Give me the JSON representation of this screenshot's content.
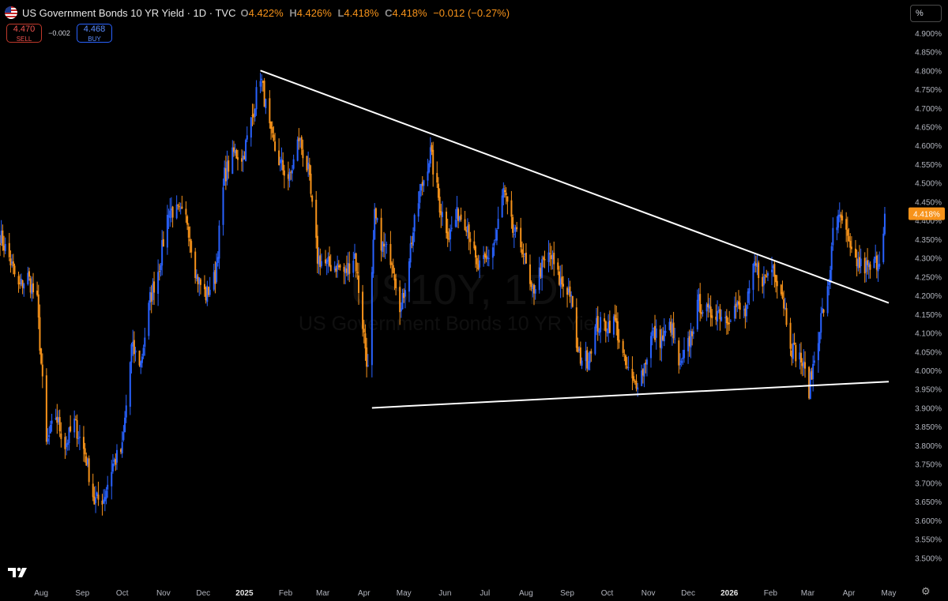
{
  "header": {
    "title": "US Government Bonds 10 YR Yield · 1D · TVC",
    "open_key": "O",
    "open": "4.422%",
    "high_key": "H",
    "high": "4.426%",
    "low_key": "L",
    "low": "4.418%",
    "close_key": "C",
    "close": "4.418%",
    "change": "−0.012 (−0.27%)"
  },
  "trade": {
    "sell_price": "4.470",
    "sell_label": "SELL",
    "spread": "−0.002",
    "buy_price": "4.468",
    "buy_label": "BUY"
  },
  "axis_unit_button": "%",
  "colors": {
    "bg": "#000000",
    "up": "#2962ff",
    "down": "#f7931a",
    "trendline": "#ffffff",
    "price_label": "#f7931a"
  },
  "icons": {
    "logo": "tradingview-logo",
    "settings": "gear-icon"
  },
  "chart_data": {
    "type": "candlestick",
    "title": "US Government Bonds 10 YR Yield",
    "interval": "1D",
    "source": "TVC",
    "ylim": [
      3.45,
      4.925
    ],
    "y_ticks": [
      "4.900%",
      "4.850%",
      "4.800%",
      "4.750%",
      "4.700%",
      "4.650%",
      "4.600%",
      "4.550%",
      "4.500%",
      "4.450%",
      "4.400%",
      "4.350%",
      "4.300%",
      "4.250%",
      "4.200%",
      "4.150%",
      "4.100%",
      "4.050%",
      "4.000%",
      "3.950%",
      "3.900%",
      "3.850%",
      "3.800%",
      "3.750%",
      "3.700%",
      "3.650%",
      "3.600%",
      "3.550%",
      "3.500%"
    ],
    "x_ticks": [
      {
        "label": "Aug",
        "date": "2024-08-01"
      },
      {
        "label": "Sep",
        "date": "2024-09-01"
      },
      {
        "label": "Oct",
        "date": "2024-10-01"
      },
      {
        "label": "Nov",
        "date": "2024-11-01"
      },
      {
        "label": "Dec",
        "date": "2024-12-01"
      },
      {
        "label": "2025",
        "date": "2025-01-01"
      },
      {
        "label": "Feb",
        "date": "2025-02-01"
      },
      {
        "label": "Mar",
        "date": "2025-03-01"
      },
      {
        "label": "Apr",
        "date": "2025-04-01"
      },
      {
        "label": "May",
        "date": "2025-05-01"
      },
      {
        "label": "Jun",
        "date": "2025-06-01"
      },
      {
        "label": "Jul",
        "date": "2025-07-01"
      },
      {
        "label": "Aug",
        "date": "2025-08-01"
      },
      {
        "label": "Sep",
        "date": "2025-09-01"
      },
      {
        "label": "Oct",
        "date": "2025-10-01"
      },
      {
        "label": "Nov",
        "date": "2025-11-01"
      },
      {
        "label": "Dec",
        "date": "2025-12-01"
      },
      {
        "label": "2026",
        "date": "2026-01-01"
      },
      {
        "label": "Feb",
        "date": "2026-02-01"
      },
      {
        "label": "Mar",
        "date": "2026-03-01"
      },
      {
        "label": "Apr",
        "date": "2026-04-01"
      },
      {
        "label": "May",
        "date": "2026-05-01"
      }
    ],
    "x_start": "2024-07-01",
    "x_end": "2026-05-01",
    "last_price": 4.418,
    "last_price_label": "4.418%",
    "close_path": [
      [
        "2024-07-01",
        4.36
      ],
      [
        "2024-07-08",
        4.3
      ],
      [
        "2024-07-15",
        4.22
      ],
      [
        "2024-07-22",
        4.25
      ],
      [
        "2024-07-29",
        4.18
      ],
      [
        "2024-08-05",
        3.8
      ],
      [
        "2024-08-12",
        3.88
      ],
      [
        "2024-08-19",
        3.8
      ],
      [
        "2024-08-26",
        3.86
      ],
      [
        "2024-09-03",
        3.78
      ],
      [
        "2024-09-10",
        3.65
      ],
      [
        "2024-09-17",
        3.66
      ],
      [
        "2024-09-24",
        3.75
      ],
      [
        "2024-10-01",
        3.79
      ],
      [
        "2024-10-08",
        4.06
      ],
      [
        "2024-10-15",
        4.02
      ],
      [
        "2024-10-22",
        4.19
      ],
      [
        "2024-10-29",
        4.28
      ],
      [
        "2024-11-05",
        4.43
      ],
      [
        "2024-11-12",
        4.42
      ],
      [
        "2024-11-19",
        4.4
      ],
      [
        "2024-11-26",
        4.25
      ],
      [
        "2024-12-03",
        4.2
      ],
      [
        "2024-12-10",
        4.25
      ],
      [
        "2024-12-17",
        4.52
      ],
      [
        "2024-12-24",
        4.58
      ],
      [
        "2024-12-31",
        4.57
      ],
      [
        "2025-01-07",
        4.68
      ],
      [
        "2025-01-13",
        4.79
      ],
      [
        "2025-01-21",
        4.62
      ],
      [
        "2025-01-28",
        4.55
      ],
      [
        "2025-02-04",
        4.51
      ],
      [
        "2025-02-11",
        4.62
      ],
      [
        "2025-02-18",
        4.53
      ],
      [
        "2025-02-25",
        4.3
      ],
      [
        "2025-03-04",
        4.28
      ],
      [
        "2025-03-11",
        4.28
      ],
      [
        "2025-03-18",
        4.26
      ],
      [
        "2025-03-25",
        4.31
      ],
      [
        "2025-04-04",
        4.0
      ],
      [
        "2025-04-09",
        4.41
      ],
      [
        "2025-04-15",
        4.33
      ],
      [
        "2025-04-22",
        4.3
      ],
      [
        "2025-04-29",
        4.16
      ],
      [
        "2025-05-06",
        4.33
      ],
      [
        "2025-05-13",
        4.47
      ],
      [
        "2025-05-21",
        4.58
      ],
      [
        "2025-05-28",
        4.44
      ],
      [
        "2025-06-04",
        4.36
      ],
      [
        "2025-06-11",
        4.42
      ],
      [
        "2025-06-18",
        4.39
      ],
      [
        "2025-06-25",
        4.27
      ],
      [
        "2025-07-02",
        4.29
      ],
      [
        "2025-07-09",
        4.35
      ],
      [
        "2025-07-15",
        4.48
      ],
      [
        "2025-07-22",
        4.37
      ],
      [
        "2025-07-29",
        4.33
      ],
      [
        "2025-08-05",
        4.2
      ],
      [
        "2025-08-12",
        4.27
      ],
      [
        "2025-08-19",
        4.31
      ],
      [
        "2025-08-26",
        4.24
      ],
      [
        "2025-09-03",
        4.21
      ],
      [
        "2025-09-09",
        4.04
      ],
      [
        "2025-09-16",
        4.03
      ],
      [
        "2025-09-23",
        4.12
      ],
      [
        "2025-09-30",
        4.12
      ],
      [
        "2025-10-07",
        4.13
      ],
      [
        "2025-10-14",
        4.02
      ],
      [
        "2025-10-21",
        3.96
      ],
      [
        "2025-10-28",
        4.0
      ],
      [
        "2025-11-04",
        4.1
      ],
      [
        "2025-11-11",
        4.08
      ],
      [
        "2025-11-18",
        4.12
      ],
      [
        "2025-11-25",
        4.0
      ],
      [
        "2025-12-02",
        4.08
      ],
      [
        "2025-12-09",
        4.18
      ],
      [
        "2025-12-16",
        4.15
      ],
      [
        "2025-12-23",
        4.16
      ],
      [
        "2025-12-30",
        4.14
      ],
      [
        "2026-01-06",
        4.17
      ],
      [
        "2026-01-13",
        4.15
      ],
      [
        "2026-01-20",
        4.28
      ],
      [
        "2026-01-27",
        4.24
      ],
      [
        "2026-02-03",
        4.28
      ],
      [
        "2026-02-10",
        4.2
      ],
      [
        "2026-02-17",
        4.06
      ],
      [
        "2026-02-24",
        4.03
      ],
      [
        "2026-03-02",
        3.95
      ],
      [
        "2026-03-06",
        4.03
      ],
      [
        "2026-03-11",
        4.14
      ],
      [
        "2026-03-17",
        4.22
      ],
      [
        "2026-03-20",
        4.39
      ],
      [
        "2026-03-27",
        4.4
      ],
      [
        "2026-04-03",
        4.3
      ],
      [
        "2026-04-10",
        4.28
      ],
      [
        "2026-04-17",
        4.27
      ],
      [
        "2026-04-24",
        4.3
      ],
      [
        "2026-04-28",
        4.418
      ]
    ],
    "trendlines": [
      {
        "name": "upper",
        "from": [
          "2025-01-13",
          4.8
        ],
        "to": [
          "2026-05-01",
          4.18
        ]
      },
      {
        "name": "lower",
        "from": [
          "2025-04-07",
          3.9
        ],
        "to": [
          "2026-05-01",
          3.97
        ]
      }
    ],
    "watermark": {
      "symbol": "US10Y, 1D",
      "name": "US Government Bonds 10 YR Yield"
    },
    "grid": false
  }
}
